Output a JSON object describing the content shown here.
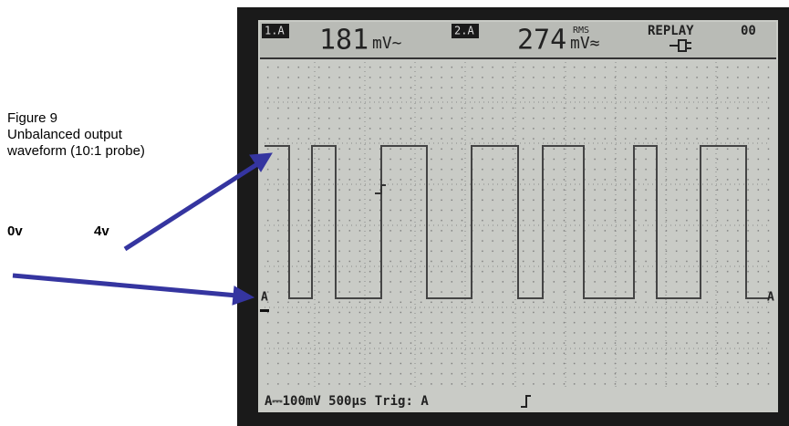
{
  "caption": {
    "label": "Figure 9",
    "lines": [
      "Unbalanced output",
      "waveform (10:1 probe)"
    ]
  },
  "annotations": {
    "zero": "0v",
    "four": "4v"
  },
  "scope": {
    "readouts": [
      {
        "channel": "1.A",
        "value": "181",
        "unit": "mV~"
      },
      {
        "channel": "2.A",
        "value": "274",
        "rms": "RMS",
        "unit": "mV≈"
      }
    ],
    "mode": "REPLAY",
    "mode_number": "00",
    "ground_markers": [
      "A",
      "A"
    ],
    "status": "A⎓100mV 500µs Trig: A"
  }
}
